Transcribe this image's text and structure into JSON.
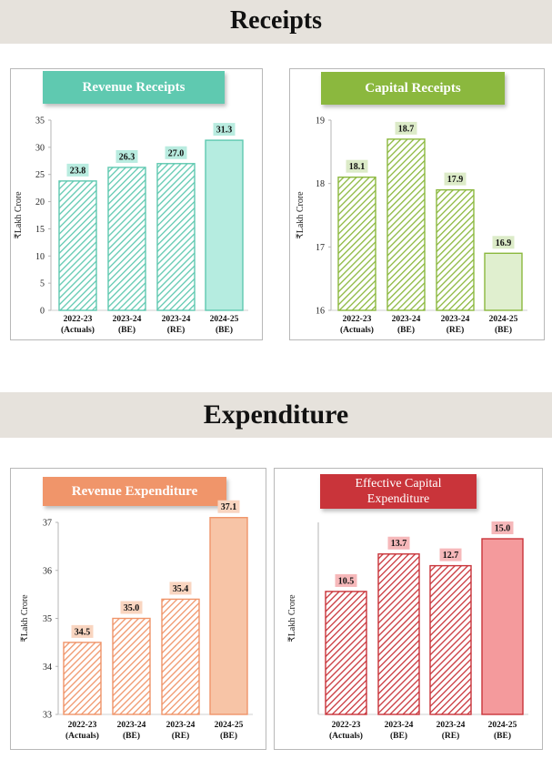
{
  "sections": {
    "receipts_title": "Receipts",
    "expenditure_title": "Expenditure"
  },
  "colors": {
    "banner_bg": "#e6e2dc",
    "revenue_receipts": "#5fc9b0",
    "capital_receipts": "#8bb83e",
    "revenue_expenditure": "#f0956a",
    "capital_expenditure": "#c9343a"
  },
  "chart_data": [
    {
      "id": "rr",
      "type": "bar",
      "title": "Revenue Receipts",
      "ylabel": "₹Lakh Crore",
      "categories": [
        [
          "2022-23",
          "(Actuals)"
        ],
        [
          "2023-24",
          "(BE)"
        ],
        [
          "2023-24",
          "(RE)"
        ],
        [
          "2024-25",
          "(BE)"
        ]
      ],
      "values": [
        23.8,
        26.3,
        27.0,
        31.3
      ],
      "value_labels": [
        "23.8",
        "26.3",
        "27.0",
        "31.3"
      ],
      "yticks": [
        "0",
        "5",
        "10",
        "15",
        "20",
        "25",
        "30",
        "35"
      ],
      "ylim": [
        0,
        35
      ],
      "bar_color": "#5fc9b0",
      "last_fill": "#b5ece0",
      "label_bg": "#b9ece0"
    },
    {
      "id": "cr",
      "type": "bar",
      "title": "Capital Receipts",
      "ylabel": "₹Lakh Crore",
      "categories": [
        [
          "2022-23",
          "(Actuals)"
        ],
        [
          "2023-24",
          "(BE)"
        ],
        [
          "2023-24",
          "(RE)"
        ],
        [
          "2024-25",
          "(BE)"
        ]
      ],
      "values": [
        18.1,
        18.7,
        17.9,
        16.9
      ],
      "value_labels": [
        "18.1",
        "18.7",
        "17.9",
        "16.9"
      ],
      "yticks": [
        "16",
        "17",
        "18",
        "19"
      ],
      "ylim": [
        16,
        19
      ],
      "bar_color": "#8bb83e",
      "last_fill": "#e0efcf",
      "label_bg": "#dcebc8"
    },
    {
      "id": "re",
      "type": "bar",
      "title": "Revenue Expenditure",
      "ylabel": "₹Lakh Crore",
      "categories": [
        [
          "2022-23",
          "(Actuals)"
        ],
        [
          "2023-24",
          "(BE)"
        ],
        [
          "2023-24",
          "(RE)"
        ],
        [
          "2024-25",
          "(BE)"
        ]
      ],
      "values": [
        34.5,
        35.0,
        35.4,
        37.1
      ],
      "value_labels": [
        "34.5",
        "35.0",
        "35.4",
        "37.1"
      ],
      "yticks": [
        "33",
        "34",
        "35",
        "36",
        "37"
      ],
      "ylim": [
        33,
        37
      ],
      "bar_color": "#f0956a",
      "last_fill": "#f7c4a6",
      "label_bg": "#f9d5c0"
    },
    {
      "id": "ce",
      "type": "bar",
      "title": "Effective Capital Expenditure",
      "ylabel": "₹Lakh Crore",
      "categories": [
        [
          "2022-23",
          "(Actuals)"
        ],
        [
          "2023-24",
          "(BE)"
        ],
        [
          "2023-24",
          "(RE)"
        ],
        [
          "2024-25",
          "(BE)"
        ]
      ],
      "values": [
        10.5,
        13.7,
        12.7,
        15.0
      ],
      "value_labels": [
        "10.5",
        "13.7",
        "12.7",
        "15.0"
      ],
      "yticks": [],
      "ylim": [
        0,
        16.4
      ],
      "bar_color": "#c9343a",
      "last_fill": "#f49a9c",
      "label_bg": "#f6b8ba"
    }
  ]
}
